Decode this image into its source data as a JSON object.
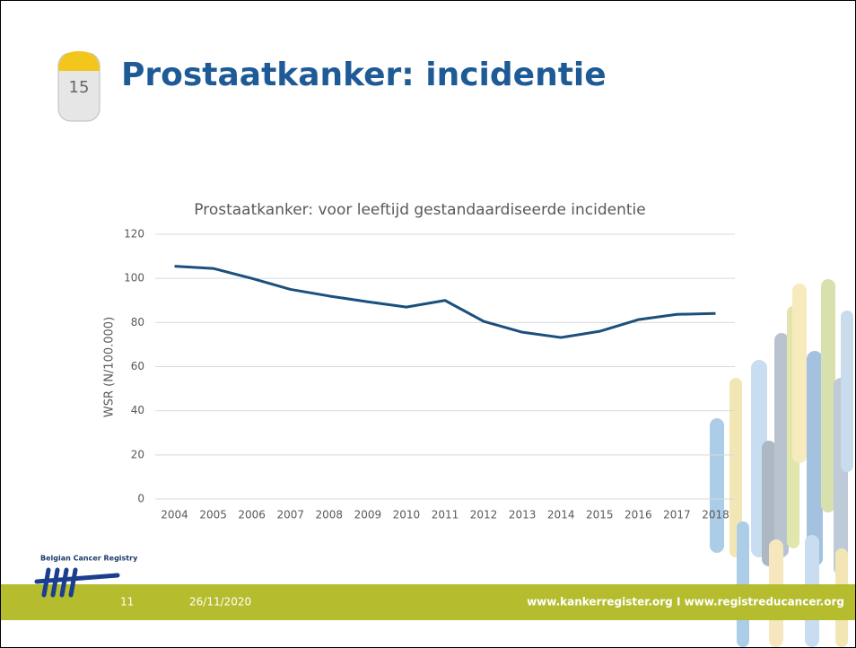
{
  "slide": {
    "badge": "15",
    "title": "Prostaatkanker: incidentie",
    "logo_text": "Belgian Cancer Registry",
    "page_number": "11",
    "date": "26/11/2020",
    "footer_links": "www.kankerregister.org I www.registreducancer.org"
  },
  "chart_data": {
    "type": "line",
    "title": "Prostaatkanker: voor leeftijd gestandaardiseerde incidentie",
    "y_label": "WSR (N/100.000)",
    "categories": [
      "2004",
      "2005",
      "2006",
      "2007",
      "2008",
      "2009",
      "2010",
      "2011",
      "2012",
      "2013",
      "2014",
      "2015",
      "2016",
      "2017",
      "2018"
    ],
    "values": [
      105.5,
      104.5,
      100,
      95,
      92,
      89.4,
      87,
      90,
      80.5,
      75.6,
      73.2,
      76,
      81.3,
      83.7,
      84.1
    ],
    "color": "#1b4f7c",
    "ylim": [
      0,
      120
    ],
    "yticks": [
      0,
      20,
      40,
      60,
      80,
      100,
      120
    ],
    "grid": true
  }
}
